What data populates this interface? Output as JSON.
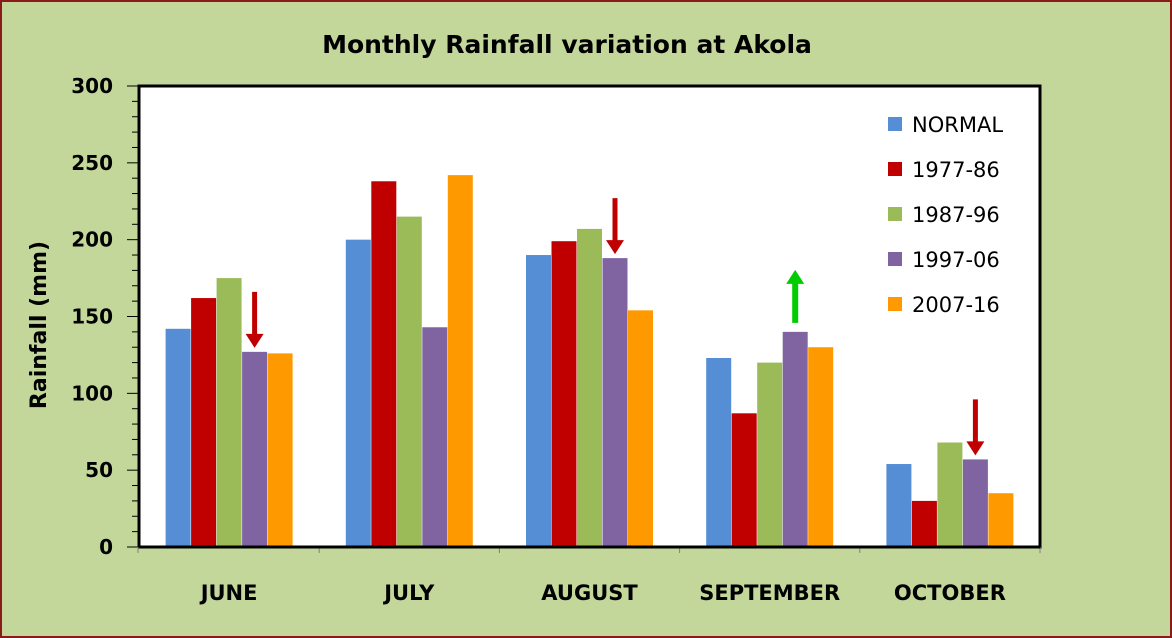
{
  "chart_data": {
    "type": "bar",
    "title": "Monthly Rainfall variation at Akola",
    "xlabel": "",
    "ylabel": "Rainfall (mm)",
    "ylim": [
      0,
      300
    ],
    "yticks": [
      0,
      50,
      100,
      150,
      200,
      250,
      300
    ],
    "grid": false,
    "legend_position": "top-right",
    "categories": [
      "JUNE",
      "JULY",
      "AUGUST",
      "SEPTEMBER",
      "OCTOBER"
    ],
    "series": [
      {
        "name": "NORMAL",
        "color": "#558ed5",
        "values": [
          142,
          200,
          190,
          123,
          54
        ]
      },
      {
        "name": "1977-86",
        "color": "#c00000",
        "values": [
          162,
          238,
          199,
          87,
          30
        ]
      },
      {
        "name": "1987-96",
        "color": "#9bbb59",
        "values": [
          175,
          215,
          207,
          120,
          68
        ]
      },
      {
        "name": "1997-06",
        "color": "#8064a2",
        "values": [
          127,
          143,
          188,
          140,
          57
        ]
      },
      {
        "name": "2007-16",
        "color": "#ff9900",
        "values": [
          126,
          242,
          154,
          130,
          35
        ]
      }
    ],
    "annotations": [
      {
        "type": "arrow-down",
        "color": "#c00000",
        "category": "JUNE",
        "series": "1997-06"
      },
      {
        "type": "arrow-down",
        "color": "#c00000",
        "category": "AUGUST",
        "series": "1997-06"
      },
      {
        "type": "arrow-up",
        "color": "#00cc00",
        "category": "SEPTEMBER",
        "series": "1997-06"
      },
      {
        "type": "arrow-down",
        "color": "#c00000",
        "category": "OCTOBER",
        "series": "1997-06"
      }
    ]
  }
}
